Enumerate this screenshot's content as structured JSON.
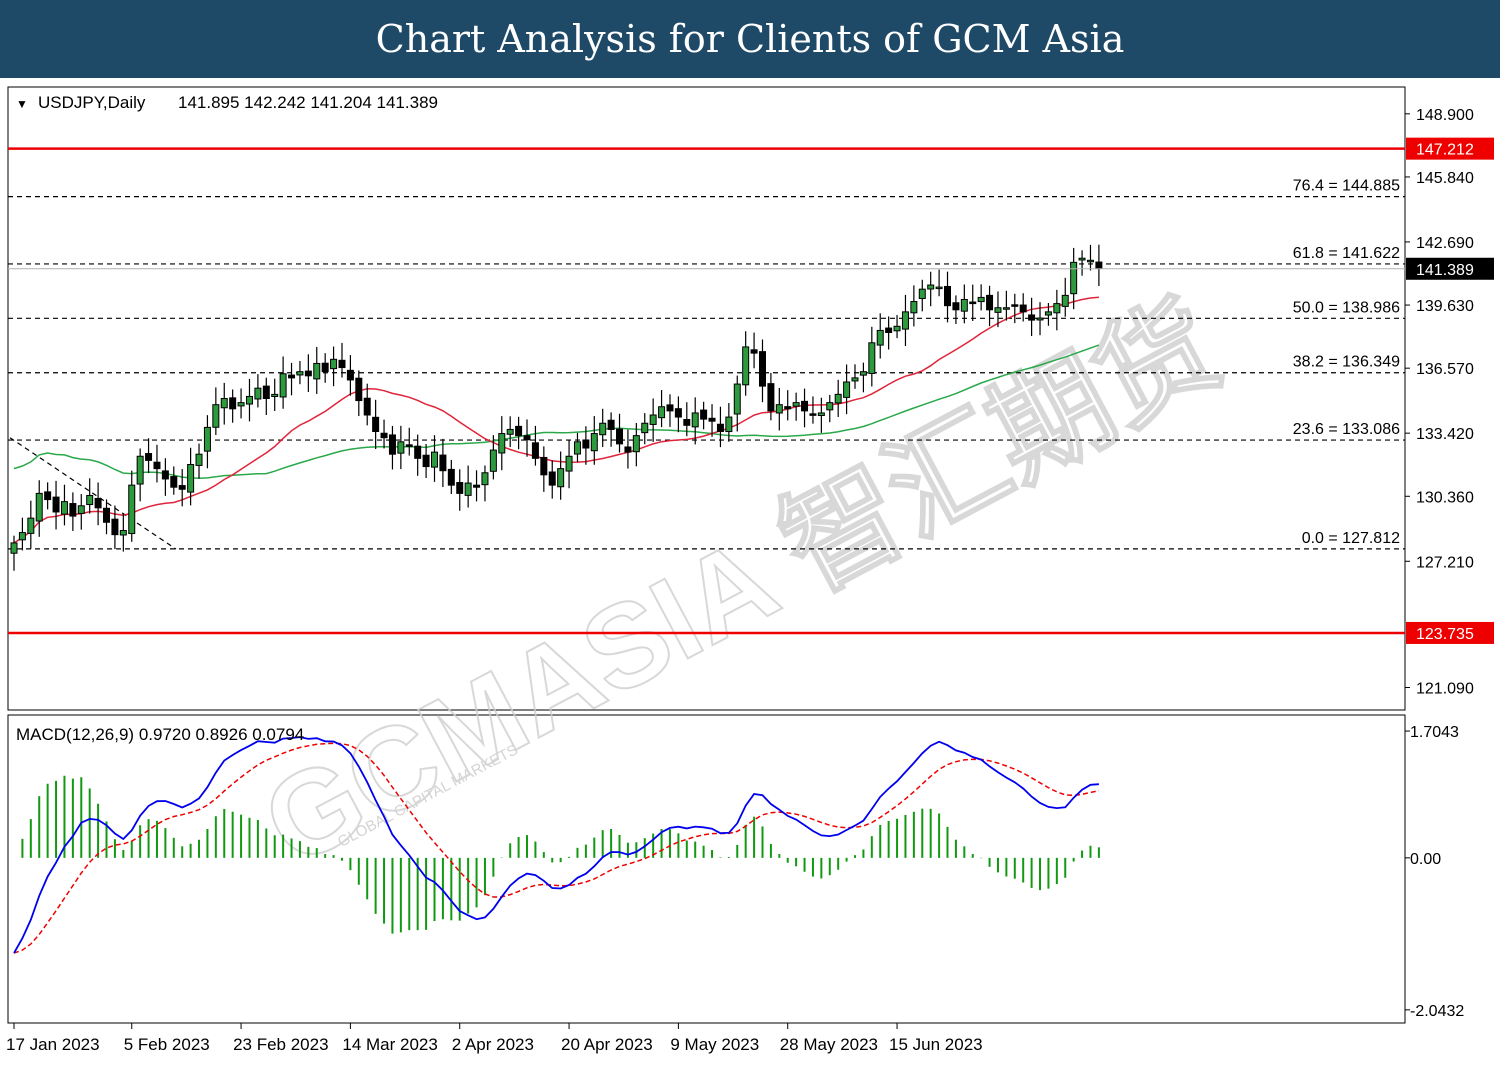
{
  "page_title": "Chart Analysis for Clients of GCM Asia",
  "watermark": "GCMASIA 智汇期货",
  "watermark_small": "GLOBAL CAPITAL MARKETS",
  "chart_data": [
    {
      "type": "candlestick",
      "symbol_label": "USDJPY,Daily",
      "ohlc_label": "141.895 142.242 141.204 141.389",
      "last_price": 141.389,
      "last_price_label": "141.389",
      "ylim": [
        120.0,
        150.2
      ],
      "yticks": [
        148.9,
        145.84,
        142.69,
        139.63,
        136.57,
        133.42,
        130.36,
        127.21,
        121.09
      ],
      "ytick_labels": [
        "148.900",
        "145.840",
        "142.690",
        "139.630",
        "136.570",
        "133.420",
        "130.360",
        "127.210",
        "121.090"
      ],
      "xtick_labels": [
        "17 Jan 2023",
        "5 Feb 2023",
        "23 Feb 2023",
        "14 Mar 2023",
        "2 Apr 2023",
        "20 Apr 2023",
        "9 May 2023",
        "28 May 2023",
        "15 Jun 2023"
      ],
      "xtick_bar_index": [
        0,
        14,
        27,
        40,
        53,
        66,
        79,
        92,
        105
      ],
      "horizontal_levels": [
        {
          "value": 147.212,
          "label": "147.212",
          "color": "#ee0000"
        },
        {
          "value": 123.735,
          "label": "123.735",
          "color": "#ee0000"
        }
      ],
      "fibonacci": [
        {
          "ratio": "76.4",
          "value": 144.885,
          "label": "76.4 = 144.885"
        },
        {
          "ratio": "61.8",
          "value": 141.622,
          "label": "61.8 = 141.622"
        },
        {
          "ratio": "50.0",
          "value": 138.986,
          "label": "50.0 = 138.986"
        },
        {
          "ratio": "38.2",
          "value": 136.349,
          "label": "38.2 = 136.349"
        },
        {
          "ratio": "23.6",
          "value": 133.086,
          "label": "23.6 = 133.086"
        },
        {
          "ratio": "0.0",
          "value": 127.812,
          "label": "0.0 = 127.812"
        }
      ],
      "closes": [
        128.1,
        128.6,
        129.3,
        130.5,
        130.2,
        129.6,
        130.1,
        129.4,
        129.9,
        130.4,
        129.8,
        129.1,
        128.5,
        128.7,
        130.9,
        132.3,
        132.1,
        131.7,
        131.2,
        130.8,
        130.7,
        131.9,
        132.4,
        133.7,
        134.8,
        135.1,
        134.6,
        134.9,
        135.2,
        135.6,
        135.1,
        135.3,
        136.3,
        136.1,
        136.4,
        136.2,
        136.8,
        136.4,
        137.0,
        136.6,
        136.0,
        135.0,
        134.3,
        133.5,
        133.2,
        132.4,
        133.0,
        132.8,
        132.2,
        131.8,
        132.5,
        131.6,
        130.9,
        130.5,
        131.0,
        130.8,
        131.5,
        132.6,
        133.4,
        133.6,
        133.3,
        133.1,
        132.2,
        131.4,
        130.9,
        131.7,
        132.3,
        133.0,
        132.7,
        133.4,
        133.9,
        133.6,
        132.9,
        132.5,
        133.3,
        133.9,
        134.3,
        134.7,
        134.5,
        134.2,
        133.8,
        134.4,
        134.1,
        134.0,
        133.5,
        134.2,
        135.8,
        137.6,
        137.3,
        135.7,
        134.5,
        134.8,
        134.6,
        134.9,
        134.5,
        134.3,
        134.4,
        134.9,
        135.3,
        135.9,
        136.1,
        136.4,
        137.8,
        138.4,
        138.3,
        138.6,
        139.3,
        139.8,
        140.4,
        140.6,
        140.5,
        139.6,
        139.4,
        139.9,
        139.7,
        140.0,
        139.4,
        139.5,
        139.5,
        139.6,
        139.3,
        138.9,
        139.0,
        139.3,
        139.7,
        140.1,
        141.7,
        141.9,
        141.8,
        141.4
      ]
    },
    {
      "type": "line",
      "title": "MACD(12,26,9) 0.9720 0.8926 0.0794",
      "ylim": [
        -2.22,
        1.92
      ],
      "yticks": [
        1.7043,
        0.0,
        -2.0432
      ],
      "ytick_labels": [
        "1.7043",
        "0.00",
        "-2.0432"
      ],
      "series": [
        {
          "key": "macd",
          "color": "#0000ee",
          "line": "solid"
        },
        {
          "key": "signal",
          "color": "#ee0000",
          "line": "dashed"
        },
        {
          "key": "histogram",
          "color": "#119911",
          "type": "bar"
        }
      ]
    }
  ]
}
